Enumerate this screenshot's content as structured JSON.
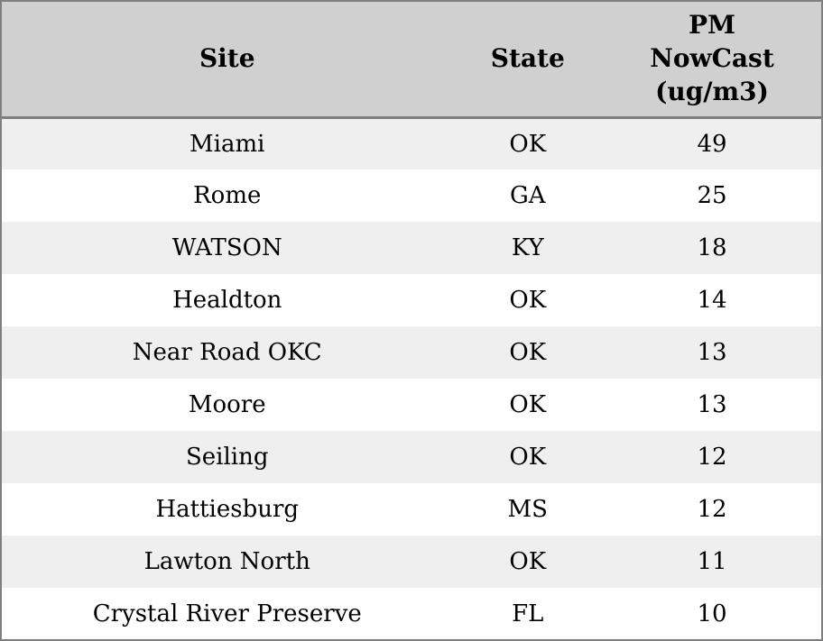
{
  "colors": {
    "header_bg": "#d0d0d0",
    "stripe_row_bg": "#efefef",
    "plain_row_bg": "#ffffff",
    "border": "#7f7f7f",
    "text": "#000000"
  },
  "chart_data": {
    "type": "table",
    "title": "",
    "columns": [
      "Site",
      "State",
      "PM NowCast (ug/m3)"
    ],
    "rows": [
      [
        "Miami",
        "OK",
        49
      ],
      [
        "Rome",
        "GA",
        25
      ],
      [
        "WATSON",
        "KY",
        18
      ],
      [
        "Healdton",
        "OK",
        14
      ],
      [
        "Near Road OKC",
        "OK",
        13
      ],
      [
        "Moore",
        "OK",
        13
      ],
      [
        "Seiling",
        "OK",
        12
      ],
      [
        "Hattiesburg",
        "MS",
        12
      ],
      [
        "Lawton North",
        "OK",
        11
      ],
      [
        "Crystal River Preserve",
        "FL",
        10
      ]
    ]
  },
  "table": {
    "headers": {
      "site": "Site",
      "state": "State",
      "pm": "PM\nNowCast\n(ug/m3)"
    },
    "rows": [
      {
        "site": "Miami",
        "state": "OK",
        "pm": "49"
      },
      {
        "site": "Rome",
        "state": "GA",
        "pm": "25"
      },
      {
        "site": "WATSON",
        "state": "KY",
        "pm": "18"
      },
      {
        "site": "Healdton",
        "state": "OK",
        "pm": "14"
      },
      {
        "site": "Near Road OKC",
        "state": "OK",
        "pm": "13"
      },
      {
        "site": "Moore",
        "state": "OK",
        "pm": "13"
      },
      {
        "site": "Seiling",
        "state": "OK",
        "pm": "12"
      },
      {
        "site": "Hattiesburg",
        "state": "MS",
        "pm": "12"
      },
      {
        "site": "Lawton North",
        "state": "OK",
        "pm": "11"
      },
      {
        "site": "Crystal River Preserve",
        "state": "FL",
        "pm": "10"
      }
    ]
  }
}
